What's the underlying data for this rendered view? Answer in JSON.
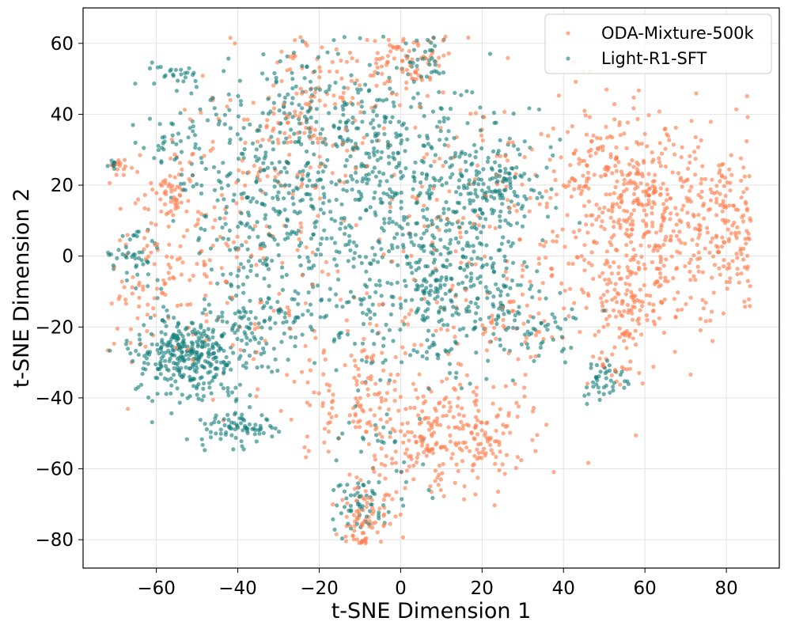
{
  "chart_data": {
    "type": "scatter",
    "title": "",
    "xlabel": "t-SNE Dimension 1",
    "ylabel": "t-SNE Dimension 2",
    "xlim": [
      -78,
      93
    ],
    "ylim": [
      -88,
      70
    ],
    "xticks": [
      -60,
      -40,
      -20,
      0,
      20,
      40,
      60,
      80
    ],
    "yticks": [
      -80,
      -60,
      -40,
      -20,
      0,
      20,
      40,
      60
    ],
    "xtick_labels": [
      "−60",
      "−40",
      "−20",
      "0",
      "20",
      "40",
      "60",
      "80"
    ],
    "ytick_labels": [
      "−80",
      "−60",
      "−40",
      "−20",
      "0",
      "20",
      "40",
      "60"
    ],
    "grid": true,
    "legend_position": "top-right",
    "series": [
      {
        "name": "ODA-Mixture-500k",
        "color": "#ff7f50",
        "opacity": 0.65,
        "clusters": [
          {
            "cx": 62,
            "cy": 10,
            "sx": 12,
            "sy": 15,
            "n": 520
          },
          {
            "cx": 80,
            "cy": 8,
            "sx": 5,
            "sy": 10,
            "n": 90
          },
          {
            "cx": 48,
            "cy": 28,
            "sx": 5,
            "sy": 8,
            "n": 70
          },
          {
            "cx": 55,
            "cy": -14,
            "sx": 4,
            "sy": 4,
            "n": 55
          },
          {
            "cx": 56,
            "cy": -23,
            "sx": 1,
            "sy": 1,
            "n": 12
          },
          {
            "cx": 52,
            "cy": -32,
            "sx": 3,
            "sy": 3,
            "n": 20
          },
          {
            "cx": 12,
            "cy": -50,
            "sx": 11,
            "sy": 8,
            "n": 260
          },
          {
            "cx": -10,
            "cy": -42,
            "sx": 8,
            "sy": 8,
            "n": 90
          },
          {
            "cx": -8,
            "cy": -73,
            "sx": 4,
            "sy": 5,
            "n": 70
          },
          {
            "cx": -10,
            "cy": -80,
            "sx": 1.5,
            "sy": 1,
            "n": 12
          },
          {
            "cx": 2,
            "cy": 56,
            "sx": 5,
            "sy": 4,
            "n": 55
          },
          {
            "cx": -10,
            "cy": 52,
            "sx": 7,
            "sy": 6,
            "n": 45
          },
          {
            "cx": -28,
            "cy": 38,
            "sx": 12,
            "sy": 12,
            "n": 140
          },
          {
            "cx": -56,
            "cy": 18,
            "sx": 3,
            "sy": 4,
            "n": 45
          },
          {
            "cx": -70,
            "cy": 25,
            "sx": 1.5,
            "sy": 1.5,
            "n": 16
          },
          {
            "cx": -60,
            "cy": -6,
            "sx": 6,
            "sy": 14,
            "n": 90
          },
          {
            "cx": -18,
            "cy": -20,
            "sx": 16,
            "sy": 12,
            "n": 90
          },
          {
            "cx": 15,
            "cy": 20,
            "sx": 18,
            "sy": 15,
            "n": 130
          },
          {
            "cx": -42,
            "cy": 5,
            "sx": 14,
            "sy": 14,
            "n": 80
          },
          {
            "cx": 25,
            "cy": -20,
            "sx": 8,
            "sy": 8,
            "n": 60
          }
        ]
      },
      {
        "name": "Light-R1-SFT",
        "color": "#0e7c78",
        "opacity": 0.6,
        "clusters": [
          {
            "cx": -52,
            "cy": -28,
            "sx": 7,
            "sy": 6,
            "n": 330
          },
          {
            "cx": -35,
            "cy": -20,
            "sx": 6,
            "sy": 6,
            "n": 90
          },
          {
            "cx": -40,
            "cy": -48,
            "sx": 5,
            "sy": 3,
            "n": 80
          },
          {
            "cx": -66,
            "cy": 0,
            "sx": 3,
            "sy": 3,
            "n": 40
          },
          {
            "cx": -55,
            "cy": 32,
            "sx": 4,
            "sy": 4,
            "n": 30
          },
          {
            "cx": -55,
            "cy": 50,
            "sx": 4,
            "sy": 3,
            "n": 25
          },
          {
            "cx": -70,
            "cy": 26,
            "sx": 1,
            "sy": 1,
            "n": 8
          },
          {
            "cx": -32,
            "cy": 10,
            "sx": 12,
            "sy": 14,
            "n": 260
          },
          {
            "cx": -25,
            "cy": 38,
            "sx": 12,
            "sy": 10,
            "n": 180
          },
          {
            "cx": -2,
            "cy": 25,
            "sx": 12,
            "sy": 14,
            "n": 320
          },
          {
            "cx": 5,
            "cy": 55,
            "sx": 4,
            "sy": 4,
            "n": 35
          },
          {
            "cx": 22,
            "cy": 20,
            "sx": 7,
            "sy": 8,
            "n": 170
          },
          {
            "cx": 10,
            "cy": -5,
            "sx": 10,
            "sy": 10,
            "n": 220
          },
          {
            "cx": 20,
            "cy": -12,
            "sx": 7,
            "sy": 6,
            "n": 80
          },
          {
            "cx": 35,
            "cy": -22,
            "sx": 6,
            "sy": 5,
            "n": 45
          },
          {
            "cx": 5,
            "cy": -28,
            "sx": 8,
            "sy": 6,
            "n": 40
          },
          {
            "cx": 50,
            "cy": -35,
            "sx": 2.5,
            "sy": 2.5,
            "n": 40
          },
          {
            "cx": -10,
            "cy": -70,
            "sx": 4,
            "sy": 4,
            "n": 55
          },
          {
            "cx": -5,
            "cy": -55,
            "sx": 6,
            "sy": 6,
            "n": 30
          },
          {
            "cx": -15,
            "cy": -10,
            "sx": 10,
            "sy": 10,
            "n": 60
          }
        ]
      }
    ]
  }
}
